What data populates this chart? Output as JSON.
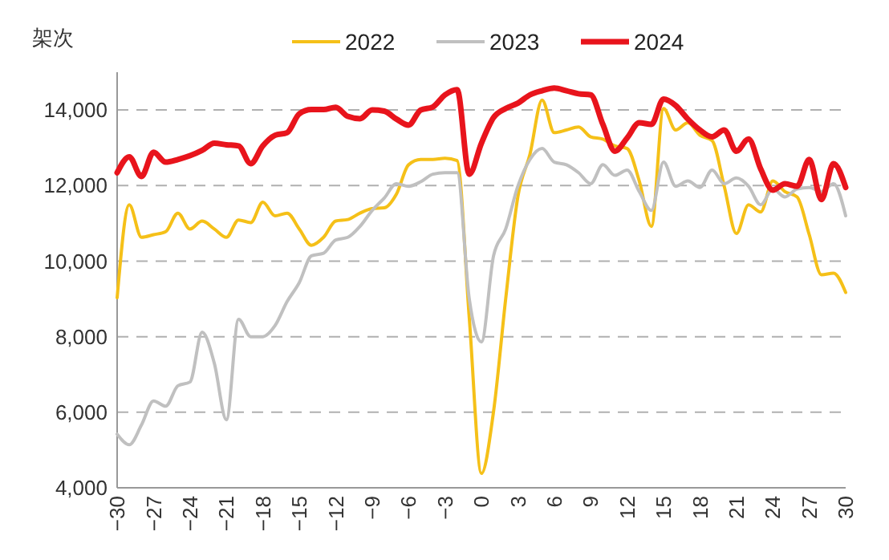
{
  "chart_data": {
    "type": "line",
    "ylabel": "架次",
    "x": [
      -30,
      -29,
      -28,
      -27,
      -26,
      -25,
      -24,
      -23,
      -22,
      -21,
      -20,
      -19,
      -18,
      -17,
      -16,
      -15,
      -14,
      -13,
      -12,
      -11,
      -10,
      -9,
      -8,
      -7,
      -6,
      -5,
      -4,
      -3,
      -2,
      -1,
      0,
      1,
      2,
      3,
      4,
      5,
      6,
      7,
      8,
      9,
      10,
      11,
      12,
      13,
      14,
      15,
      16,
      17,
      18,
      19,
      20,
      21,
      22,
      23,
      24,
      25,
      26,
      27,
      28,
      29,
      30
    ],
    "series": [
      {
        "name": "2022",
        "color": "#f5c018",
        "values": [
          9030,
          11490,
          10630,
          10700,
          10780,
          11270,
          10850,
          11060,
          10850,
          10630,
          11090,
          11020,
          11560,
          11200,
          11270,
          10850,
          10420,
          10630,
          11060,
          11100,
          11270,
          11390,
          11410,
          11770,
          12550,
          12690,
          12690,
          12720,
          12660,
          8500,
          4380,
          6020,
          9000,
          11700,
          12830,
          14260,
          13400,
          13470,
          13550,
          13290,
          13230,
          13050,
          12980,
          12120,
          10920,
          14040,
          13470,
          13660,
          13330,
          13190,
          11980,
          10730,
          11490,
          11300,
          12120,
          11840,
          11700,
          10700,
          9640,
          9680,
          9170
        ]
      },
      {
        "name": "2023",
        "color": "#c0c0c0",
        "values": [
          5420,
          5140,
          5660,
          6300,
          6160,
          6700,
          6800,
          8120,
          7300,
          5800,
          8460,
          8000,
          8000,
          8290,
          8930,
          9430,
          10140,
          10210,
          10560,
          10630,
          10920,
          11340,
          11670,
          12050,
          11980,
          12100,
          12300,
          12340,
          12340,
          9000,
          7860,
          10140,
          10850,
          11980,
          12690,
          12980,
          12620,
          12550,
          12340,
          12050,
          12550,
          12270,
          12410,
          11840,
          11340,
          12620,
          11980,
          12120,
          11950,
          12410,
          12050,
          12200,
          11980,
          11490,
          11910,
          11700,
          11910,
          11950,
          11840,
          12050,
          11200
        ]
      },
      {
        "name": "2024",
        "color": "#e8141c",
        "values": [
          12340,
          12760,
          12240,
          12880,
          12620,
          12690,
          12790,
          12930,
          13120,
          13080,
          13050,
          12580,
          13050,
          13330,
          13400,
          13900,
          14010,
          14010,
          14070,
          13830,
          13770,
          14000,
          13970,
          13760,
          13600,
          14000,
          14080,
          14400,
          14540,
          12300,
          13120,
          13800,
          14040,
          14180,
          14400,
          14510,
          14580,
          14510,
          14430,
          14400,
          13620,
          12910,
          13260,
          13660,
          13620,
          14290,
          14120,
          13760,
          13470,
          13290,
          13470,
          12910,
          13230,
          12440,
          11880,
          12050,
          11980,
          12690,
          11630,
          12580,
          11950
        ]
      }
    ],
    "xlim": [
      -30,
      30
    ],
    "xticks": [
      {
        "value": -30,
        "label": "−30"
      },
      {
        "value": -27,
        "label": "−27"
      },
      {
        "value": -24,
        "label": "−24"
      },
      {
        "value": -21,
        "label": "−21"
      },
      {
        "value": -18,
        "label": "−18"
      },
      {
        "value": -15,
        "label": "−15"
      },
      {
        "value": -12,
        "label": "−12"
      },
      {
        "value": -9,
        "label": "−9"
      },
      {
        "value": -6,
        "label": "−6"
      },
      {
        "value": -3,
        "label": "−3"
      },
      0,
      3,
      6,
      9,
      12,
      15,
      18,
      21,
      24,
      27,
      30
    ],
    "ylim": [
      4000,
      15000
    ],
    "yticks": [
      {
        "value": 4000,
        "label": "4,000"
      },
      {
        "value": 6000,
        "label": "6,000"
      },
      {
        "value": 8000,
        "label": "8,000"
      },
      {
        "value": 10000,
        "label": "10,000"
      },
      {
        "value": 12000,
        "label": "12,000"
      },
      {
        "value": 14000,
        "label": "14,000"
      }
    ],
    "grid": "y",
    "legend": "top",
    "line_style": "solid",
    "marker": "none"
  }
}
